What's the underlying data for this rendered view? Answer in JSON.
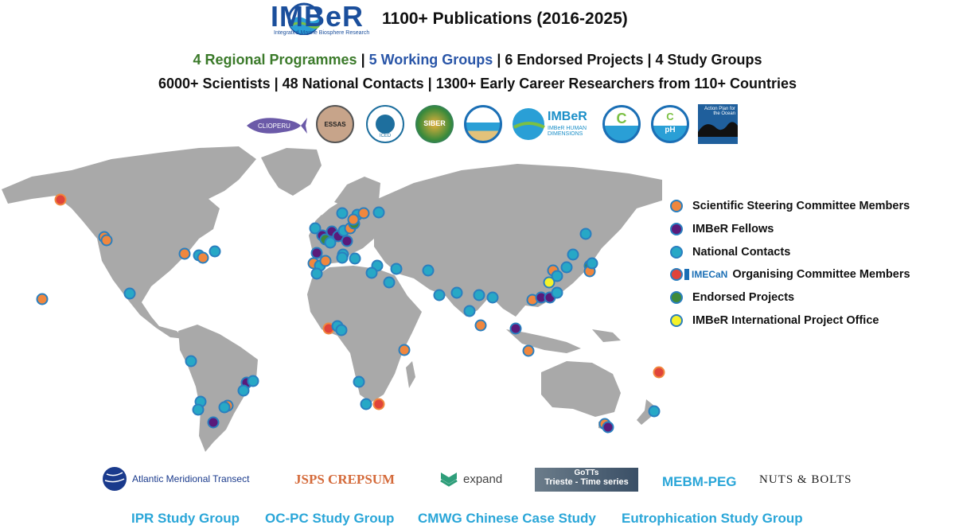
{
  "header": {
    "logo_text": "IMBeR",
    "logo_subtitle": "Integrated Marine Biosphere Research",
    "publications": "1100+ Publications (2016-2025)"
  },
  "summary": {
    "regional": "4 Regional Programmes",
    "working": "5 Working Groups",
    "line1_rest": "6 Endorsed Projects | 4 Study Groups",
    "sep": "|",
    "line2": "6000+ Scientists | 48 National Contacts | 1300+ Early Career Researchers from 110+ Countries"
  },
  "programme_logos": {
    "clioperu": "CLIOPERU",
    "essas": "ESSAS",
    "iced": "ICED",
    "siber": "SIBER",
    "hd": "IMBeR HUMAN DIMENSIONS",
    "ph": "pH",
    "c": "C",
    "action_plan": "Action Plan for the Ocean"
  },
  "legend": [
    {
      "label": "Scientific Steering Committee Members",
      "color": "#f0873e"
    },
    {
      "label": "IMBeR Fellows",
      "color": "#5a1a7a"
    },
    {
      "label": "National Contacts",
      "color": "#27a8c6"
    },
    {
      "label": "Organising Committee Members",
      "color": "#e0443a",
      "badge": "IMECaN"
    },
    {
      "label": "Endorsed Projects",
      "color": "#3e8a3a"
    },
    {
      "label": "IMBeR International Project Office",
      "color": "#f4f22a"
    }
  ],
  "partner_logos": {
    "amt": "Atlantic Meridional Transect",
    "jsps": "JSPS CREPSUM",
    "expand": "expand",
    "gotts_line1": "GoTTs",
    "gotts_line2": "Trieste - Time series",
    "mebm": "MEBM-PEG",
    "nuts": "NUTS & BOLTS"
  },
  "study_groups": [
    "IPR Study Group",
    "OC-PC Study Group",
    "CMWG Chinese Case Study",
    "Eutrophication Study Group"
  ],
  "colors": {
    "map_land": "#a9a9a9",
    "dot_border": "#2a7fbf",
    "brand_blue": "#1b4f9c",
    "green": "#3b7a2a",
    "blue": "#2a56a8",
    "study_group": "#2aa6d8"
  }
}
